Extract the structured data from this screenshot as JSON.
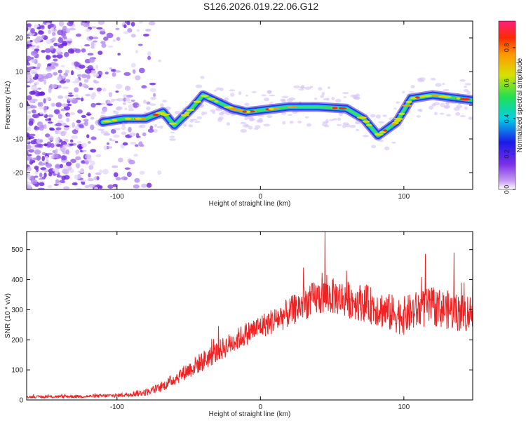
{
  "title": "S126.2026.019.22.06.G12",
  "chart_data": [
    {
      "type": "heatmap",
      "title": "S126.2026.019.22.06.G12",
      "xlabel": "Height of straight line (km)",
      "ylabel": "Frequency (Hz)",
      "xlim": [
        -163,
        148
      ],
      "ylim": [
        -25,
        25
      ],
      "xticks": [
        -100,
        0,
        100
      ],
      "yticks": [
        -20,
        -10,
        0,
        10,
        20
      ],
      "colorbar": {
        "label": "Normalized spectral amplitude",
        "range": [
          0,
          0.95
        ],
        "ticks": [
          0.0,
          0.2,
          0.4,
          0.6,
          0.8
        ]
      },
      "ridge": {
        "x": [
          -110,
          -95,
          -80,
          -68,
          -60,
          -48,
          -40,
          -30,
          -20,
          -10,
          0,
          20,
          40,
          60,
          72,
          82,
          95,
          105,
          120,
          148
        ],
        "y": [
          -5,
          -4,
          -4,
          -2,
          -6,
          -1,
          3,
          1,
          -1,
          -2,
          -1.5,
          -0.5,
          -0.5,
          -1,
          -4,
          -9,
          -5,
          2,
          3,
          1.5
        ]
      },
      "noise_region_x": [
        -163,
        -82
      ]
    },
    {
      "type": "line",
      "xlabel": "Height of straight line (km)",
      "ylabel": "SNR (10 * v/v)",
      "xlim": [
        -163,
        148
      ],
      "ylim": [
        0,
        560
      ],
      "xticks": [
        -100,
        0,
        100
      ],
      "yticks": [
        0,
        100,
        200,
        300,
        400,
        500
      ],
      "series": [
        {
          "name": "SNR",
          "color": "#ee2222",
          "envelope": {
            "x": [
              -163,
              -120,
              -100,
              -90,
              -80,
              -70,
              -60,
              -50,
              -40,
              -30,
              -20,
              -10,
              0,
              10,
              20,
              30,
              40,
              50,
              60,
              70,
              80,
              90,
              100,
              110,
              120,
              130,
              140,
              148
            ],
            "y": [
              10,
              12,
              15,
              20,
              25,
              40,
              70,
              100,
              130,
              160,
              190,
              220,
              245,
              265,
              290,
              320,
              340,
              345,
              335,
              325,
              310,
              290,
              280,
              300,
              310,
              300,
              290,
              290
            ]
          },
          "noise": {
            "x": [
              -163,
              -100,
              -70,
              -40,
              0,
              40,
              100,
              148
            ],
            "amp": [
              4,
              6,
              15,
              35,
              40,
              60,
              65,
              65
            ]
          },
          "peaks": [
            [
              45,
              560
            ],
            [
              30,
              440
            ],
            [
              60,
              430
            ],
            [
              140,
              390
            ],
            [
              148,
              430
            ],
            [
              115,
              485
            ],
            [
              135,
              490
            ]
          ]
        }
      ]
    }
  ]
}
